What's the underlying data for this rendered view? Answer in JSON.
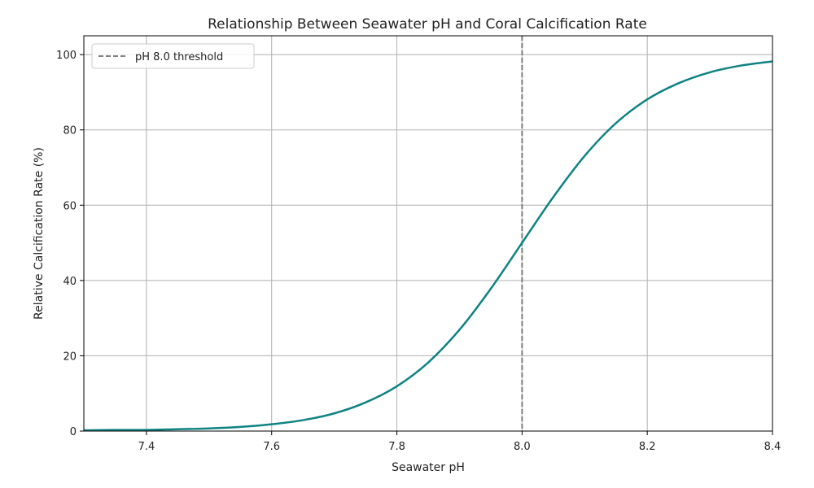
{
  "chart_data": {
    "type": "line",
    "title": "Relationship Between Seawater pH and Coral Calcification Rate",
    "xlabel": "Seawater pH",
    "ylabel": "Relative Calcification Rate (%)",
    "xlim": [
      7.3,
      8.4
    ],
    "ylim": [
      0,
      105
    ],
    "grid": true,
    "legend_position": "top-left",
    "x_ticks": [
      "7.4",
      "7.6",
      "7.8",
      "8.0",
      "8.2",
      "8.4"
    ],
    "y_ticks": [
      "0",
      "20",
      "40",
      "60",
      "80",
      "100"
    ],
    "series": [
      {
        "color": "#0f8282",
        "x": [
          7.3,
          7.35,
          7.4,
          7.45,
          7.5,
          7.55,
          7.6,
          7.65,
          7.7,
          7.75,
          7.8,
          7.85,
          7.9,
          7.95,
          8.0,
          8.05,
          8.1,
          8.15,
          8.2,
          8.25,
          8.3,
          8.35,
          8.4
        ],
        "y": [
          0.2,
          0.3,
          0.3,
          0.5,
          0.7,
          1.1,
          1.8,
          2.9,
          4.7,
          7.6,
          11.9,
          18.2,
          26.9,
          37.8,
          50.0,
          62.2,
          73.1,
          81.8,
          88.1,
          92.4,
          95.3,
          97.1,
          98.2
        ]
      }
    ],
    "reference_lines": [
      {
        "name": "pH 8.0 threshold",
        "x": 8.0,
        "color": "#808080",
        "style": "dashed"
      }
    ]
  }
}
